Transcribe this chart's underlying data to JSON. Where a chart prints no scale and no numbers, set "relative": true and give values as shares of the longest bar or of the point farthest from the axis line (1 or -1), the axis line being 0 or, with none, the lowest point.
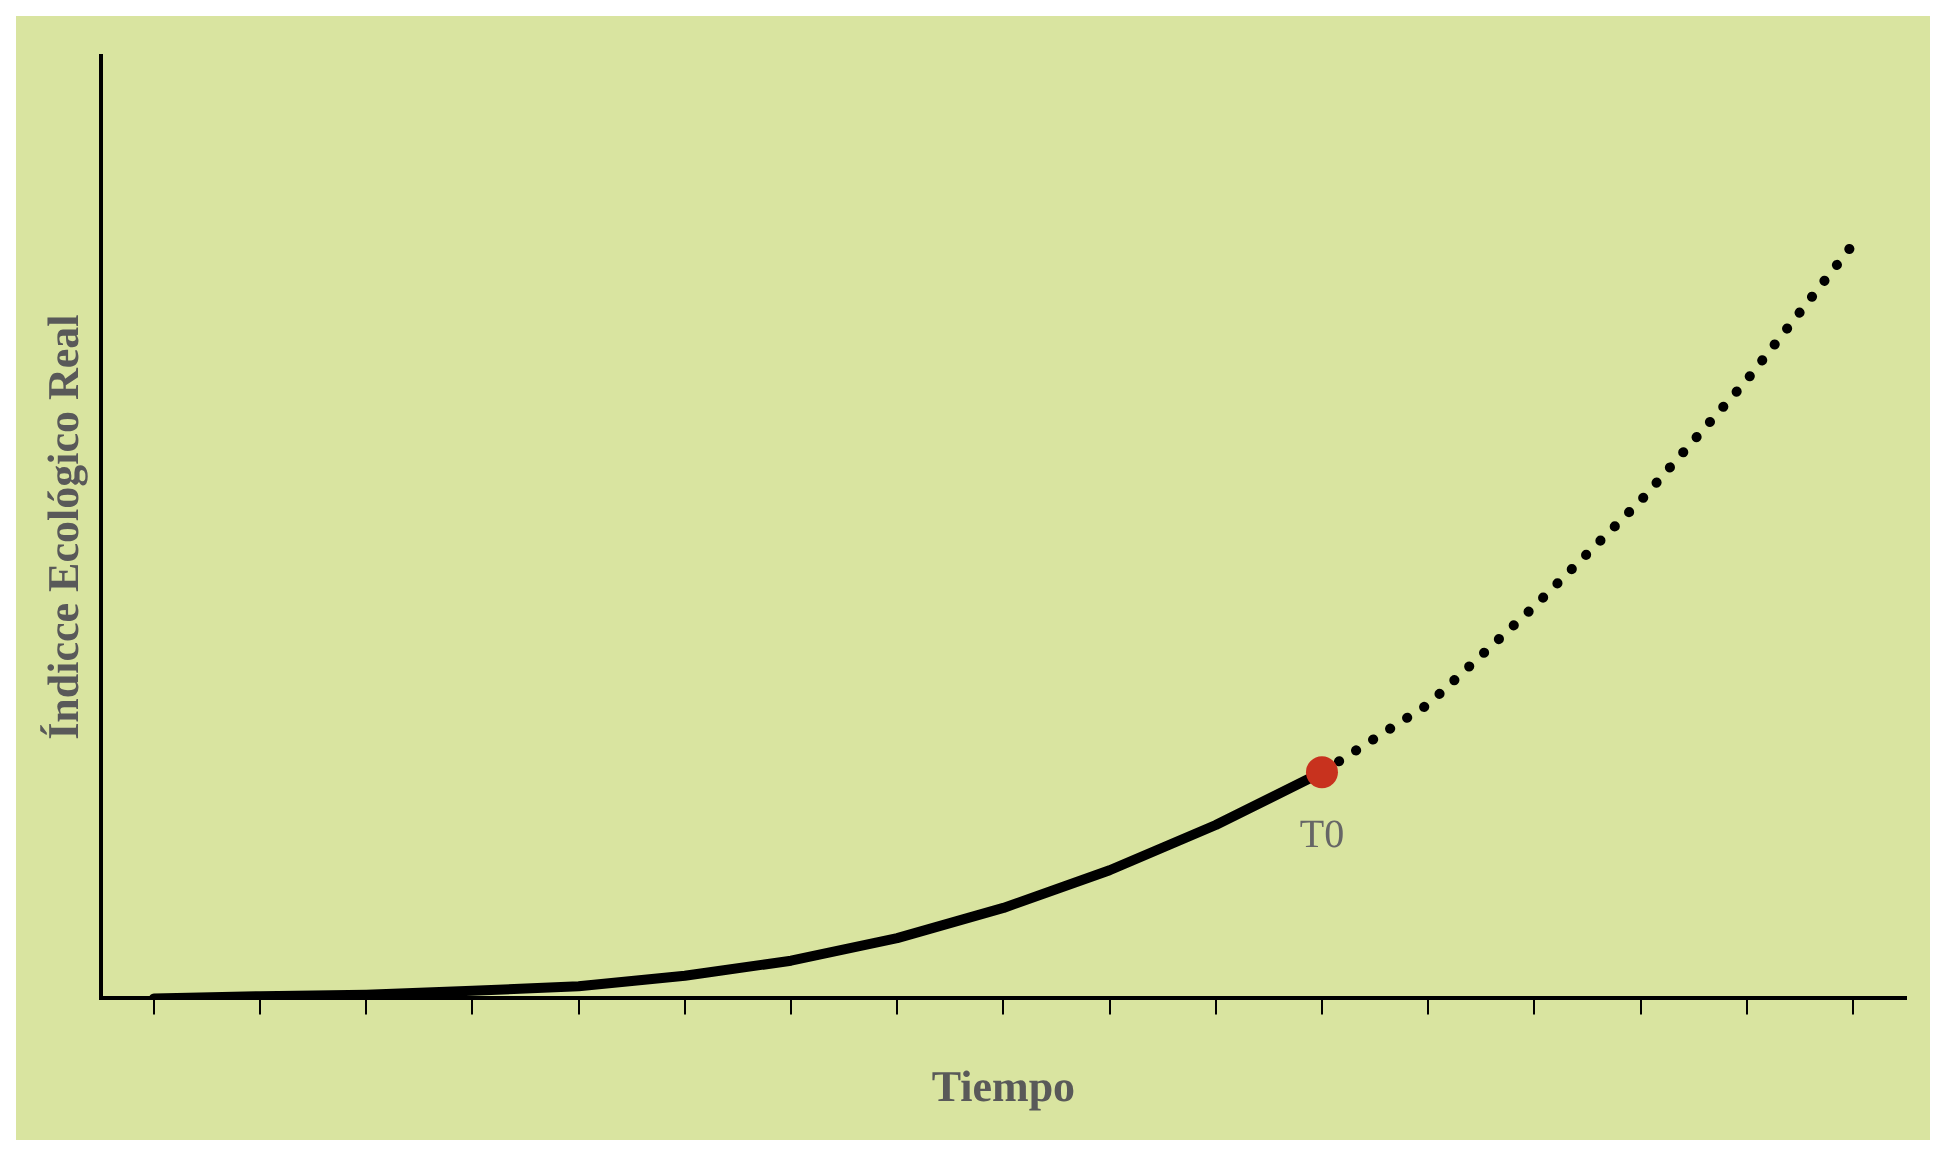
{
  "chart_data": {
    "type": "line",
    "relative": true,
    "xlabel": "Tiempo",
    "ylabel": "Índicce Ecológico Real",
    "categories": [
      null,
      null,
      null,
      null,
      null,
      null,
      null,
      null,
      null,
      null,
      null,
      null,
      null,
      null,
      null,
      null,
      null
    ],
    "series": [
      {
        "color": "#000000",
        "line_style": "solid",
        "values": [
          0,
          0.003,
          0.005,
          0.01,
          0.016,
          0.03,
          0.05,
          0.08,
          0.12,
          0.17,
          0.23,
          0.3,
          null,
          null,
          null,
          null,
          null
        ]
      },
      {
        "color": "#000000",
        "line_style": "dotted",
        "values": [
          null,
          null,
          null,
          null,
          null,
          null,
          null,
          null,
          null,
          null,
          null,
          0.3,
          0.39,
          0.52,
          0.66,
          0.82,
          1
        ]
      }
    ],
    "annotations": [
      "T0"
    ],
    "marker": "none",
    "grid": false,
    "legend": false
  }
}
